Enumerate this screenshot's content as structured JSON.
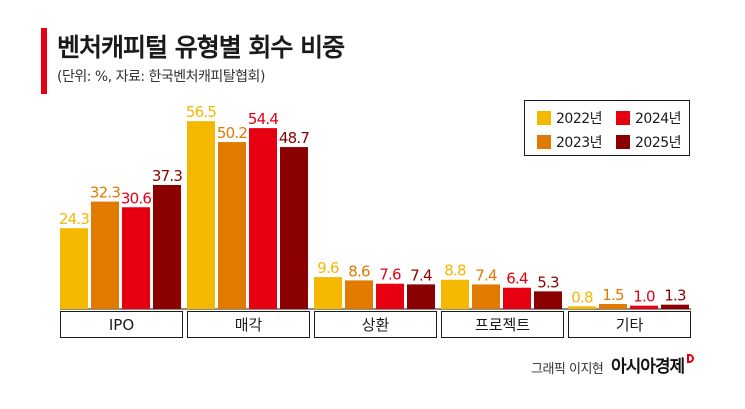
{
  "header": {
    "title": "벤처캐피털 유형별 회수 비중",
    "subtitle": "(단위: %, 자료: 한국벤처캐피탈협회)"
  },
  "footer": {
    "credit": "그래픽 이지현",
    "brand": "아시아경제"
  },
  "colors": {
    "accent": "#e60012",
    "series": [
      "#f5b800",
      "#e07a00",
      "#e60012",
      "#8b0000"
    ]
  },
  "chart_data": {
    "type": "bar",
    "categories": [
      "IPO",
      "매각",
      "상환",
      "프로젝트",
      "기타"
    ],
    "series": [
      {
        "name": "2022년",
        "values": [
          24.3,
          56.5,
          9.6,
          8.8,
          0.8
        ]
      },
      {
        "name": "2023년",
        "values": [
          32.3,
          50.2,
          8.6,
          7.4,
          1.5
        ]
      },
      {
        "name": "2024년",
        "values": [
          30.6,
          54.4,
          7.6,
          6.4,
          1.0
        ]
      },
      {
        "name": "2025년",
        "values": [
          37.3,
          48.7,
          7.4,
          5.3,
          1.3
        ]
      }
    ],
    "data_labels": [
      [
        "24.3",
        "56.5",
        "9.6",
        "8.8",
        "0.8"
      ],
      [
        "32.3",
        "50.2",
        "8.6",
        "7.4",
        "1.5"
      ],
      [
        "30.6",
        "54.4",
        "7.6",
        "6.4",
        "1.0"
      ],
      [
        "37.3",
        "48.7",
        "7.4",
        "5.3",
        "1.3"
      ]
    ],
    "legend_position": "top-right",
    "grid": false
  }
}
